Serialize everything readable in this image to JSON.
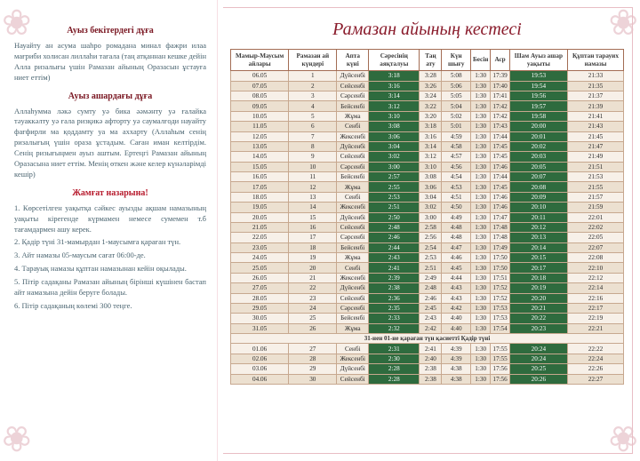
{
  "left": {
    "title1": "Ауыз бекітердегі дұға",
    "text1": "Науайту ан асума шаһро ромадана минал фажри илаа мағриби холисан лиллаһи тағала (таң атқаннан кешке дейін Алла ризалығы үшін Рамазан айының Оразасын ұстауға ниет еттім)",
    "title2": "Ауыз ашардағы дұға",
    "text2": "Аллаһумма ләкә сумту уә бика әәмәнту уә ғалайка тәуаккәлту уә ғала ризқикә афторту уә саумалғоди науайту фағфирли ма қоддамту уа ма аххарту (Аллаһым сенің ризалығың үшін ораза ұстадым. Саған иман келтірдім. Сенің ризығыңмен ауыз аштым. Ертеңгі Рамазан айының Оразасына ниет еттім. Менің өткен және келер күнәларімді кешір)",
    "title3": "Жамғат назарына!",
    "items": [
      "1. Көрсетілген уақытқа сәйкес ауызды ақшам намазының уақыты кірегенде күрмамен немесе сумемен т.б тағамдармен ашу керек.",
      "2. Қадір түні 31-мамырдан 1-маусымға қараған түн.",
      "3. Айт намазы 05-маусым сағат 06:00-де.",
      "4. Тарауық намазы құптан намазынан кейін оқылады.",
      "5. Пітір садақаны Рамазан айының бірінші күшінен бастап айт намазына дейін беруге болады.",
      "6. Пітір садақаның көлемі 300 теңге."
    ]
  },
  "right": {
    "title": "Рамазан айының кестесі",
    "headers": [
      "Мамыр-Маусым айлары",
      "Рамазан ай күндері",
      "Апта күні",
      "Сәресінің аяқталуы",
      "Таң ату",
      "Күн шығу",
      "Бесін",
      "Аср",
      "Шам Ауыз ашар уақыты",
      "Құптан тарауих намазы"
    ],
    "footnote": "31-нен 01-не қараған түн қасиетті Қадір түні",
    "rows": [
      [
        "06.05",
        "1",
        "Дүйсенбі",
        "3:18",
        "3:28",
        "5:08",
        "1:30",
        "17:39",
        "19:53",
        "21:33"
      ],
      [
        "07.05",
        "2",
        "Сейсенбі",
        "3:16",
        "3:26",
        "5:06",
        "1:30",
        "17:40",
        "19:54",
        "21:35"
      ],
      [
        "08.05",
        "3",
        "Сәрсенбі",
        "3:14",
        "3:24",
        "5:05",
        "1:30",
        "17:41",
        "19:56",
        "21:37"
      ],
      [
        "09.05",
        "4",
        "Бейсенбі",
        "3:12",
        "3:22",
        "5:04",
        "1:30",
        "17:42",
        "19:57",
        "21:39"
      ],
      [
        "10.05",
        "5",
        "Жұма",
        "3:10",
        "3:20",
        "5:02",
        "1:30",
        "17:42",
        "19:58",
        "21:41"
      ],
      [
        "11.05",
        "6",
        "Сенбі",
        "3:08",
        "3:18",
        "5:01",
        "1:30",
        "17:43",
        "20:00",
        "21:43"
      ],
      [
        "12.05",
        "7",
        "Жексенбі",
        "3:06",
        "3:16",
        "4:59",
        "1:30",
        "17:44",
        "20:01",
        "21:45"
      ],
      [
        "13.05",
        "8",
        "Дүйсенбі",
        "3:04",
        "3:14",
        "4:58",
        "1:30",
        "17:45",
        "20:02",
        "21:47"
      ],
      [
        "14.05",
        "9",
        "Сейсенбі",
        "3:02",
        "3:12",
        "4:57",
        "1:30",
        "17:45",
        "20:03",
        "21:49"
      ],
      [
        "15.05",
        "10",
        "Сәрсенбі",
        "3:00",
        "3:10",
        "4:56",
        "1:30",
        "17:46",
        "20:05",
        "21:51"
      ],
      [
        "16.05",
        "11",
        "Бейсенбі",
        "2:57",
        "3:08",
        "4:54",
        "1:30",
        "17:44",
        "20:07",
        "21:53"
      ],
      [
        "17.05",
        "12",
        "Жұма",
        "2:55",
        "3:06",
        "4:53",
        "1:30",
        "17:45",
        "20:08",
        "21:55"
      ],
      [
        "18.05",
        "13",
        "Сенбі",
        "2:53",
        "3:04",
        "4:51",
        "1:30",
        "17:46",
        "20:09",
        "21:57"
      ],
      [
        "19.05",
        "14",
        "Жексенбі",
        "2:51",
        "3:02",
        "4:50",
        "1:30",
        "17:46",
        "20:10",
        "21:59"
      ],
      [
        "20.05",
        "15",
        "Дүйсенбі",
        "2:50",
        "3:00",
        "4:49",
        "1:30",
        "17:47",
        "20:11",
        "22:01"
      ],
      [
        "21.05",
        "16",
        "Сейсенбі",
        "2:48",
        "2:58",
        "4:48",
        "1:30",
        "17:48",
        "20:12",
        "22:02"
      ],
      [
        "22.05",
        "17",
        "Сәрсенбі",
        "2:46",
        "2:56",
        "4:48",
        "1:30",
        "17:48",
        "20:13",
        "22:05"
      ],
      [
        "23.05",
        "18",
        "Бейсенбі",
        "2:44",
        "2:54",
        "4:47",
        "1:30",
        "17:49",
        "20:14",
        "22:07"
      ],
      [
        "24.05",
        "19",
        "Жұма",
        "2:43",
        "2:53",
        "4:46",
        "1:30",
        "17:50",
        "20:15",
        "22:08"
      ],
      [
        "25.05",
        "20",
        "Сенбі",
        "2:41",
        "2:51",
        "4:45",
        "1:30",
        "17:50",
        "20:17",
        "22:10"
      ],
      [
        "26.05",
        "21",
        "Жексенбі",
        "2:39",
        "2:49",
        "4:44",
        "1:30",
        "17:51",
        "20:18",
        "22:12"
      ],
      [
        "27.05",
        "22",
        "Дүйсенбі",
        "2:38",
        "2:48",
        "4:43",
        "1:30",
        "17:52",
        "20:19",
        "22:14"
      ],
      [
        "28.05",
        "23",
        "Сейсенбі",
        "2:36",
        "2:46",
        "4:43",
        "1:30",
        "17:52",
        "20:20",
        "22:16"
      ],
      [
        "29.05",
        "24",
        "Сәрсенбі",
        "2:35",
        "2:45",
        "4:42",
        "1:30",
        "17:53",
        "20:21",
        "22:17"
      ],
      [
        "30.05",
        "25",
        "Бейсенбі",
        "2:33",
        "2:43",
        "4:40",
        "1:30",
        "17:53",
        "20:22",
        "22:19"
      ],
      [
        "31.05",
        "26",
        "Жұма",
        "2:32",
        "2:42",
        "4:40",
        "1:30",
        "17:54",
        "20:23",
        "22:21"
      ],
      [
        "01.06",
        "27",
        "Сенбі",
        "2:31",
        "2:41",
        "4:39",
        "1:30",
        "17:55",
        "20:24",
        "22:22"
      ],
      [
        "02.06",
        "28",
        "Жексенбі",
        "2:30",
        "2:40",
        "4:39",
        "1:30",
        "17:55",
        "20:24",
        "22:24"
      ],
      [
        "03.06",
        "29",
        "Дүйсенбі",
        "2:28",
        "2:38",
        "4:38",
        "1:30",
        "17:56",
        "20:25",
        "22:26"
      ],
      [
        "04.06",
        "30",
        "Сейсенбі",
        "2:28",
        "2:38",
        "4:38",
        "1:30",
        "17:56",
        "20:26",
        "22:27"
      ]
    ]
  }
}
